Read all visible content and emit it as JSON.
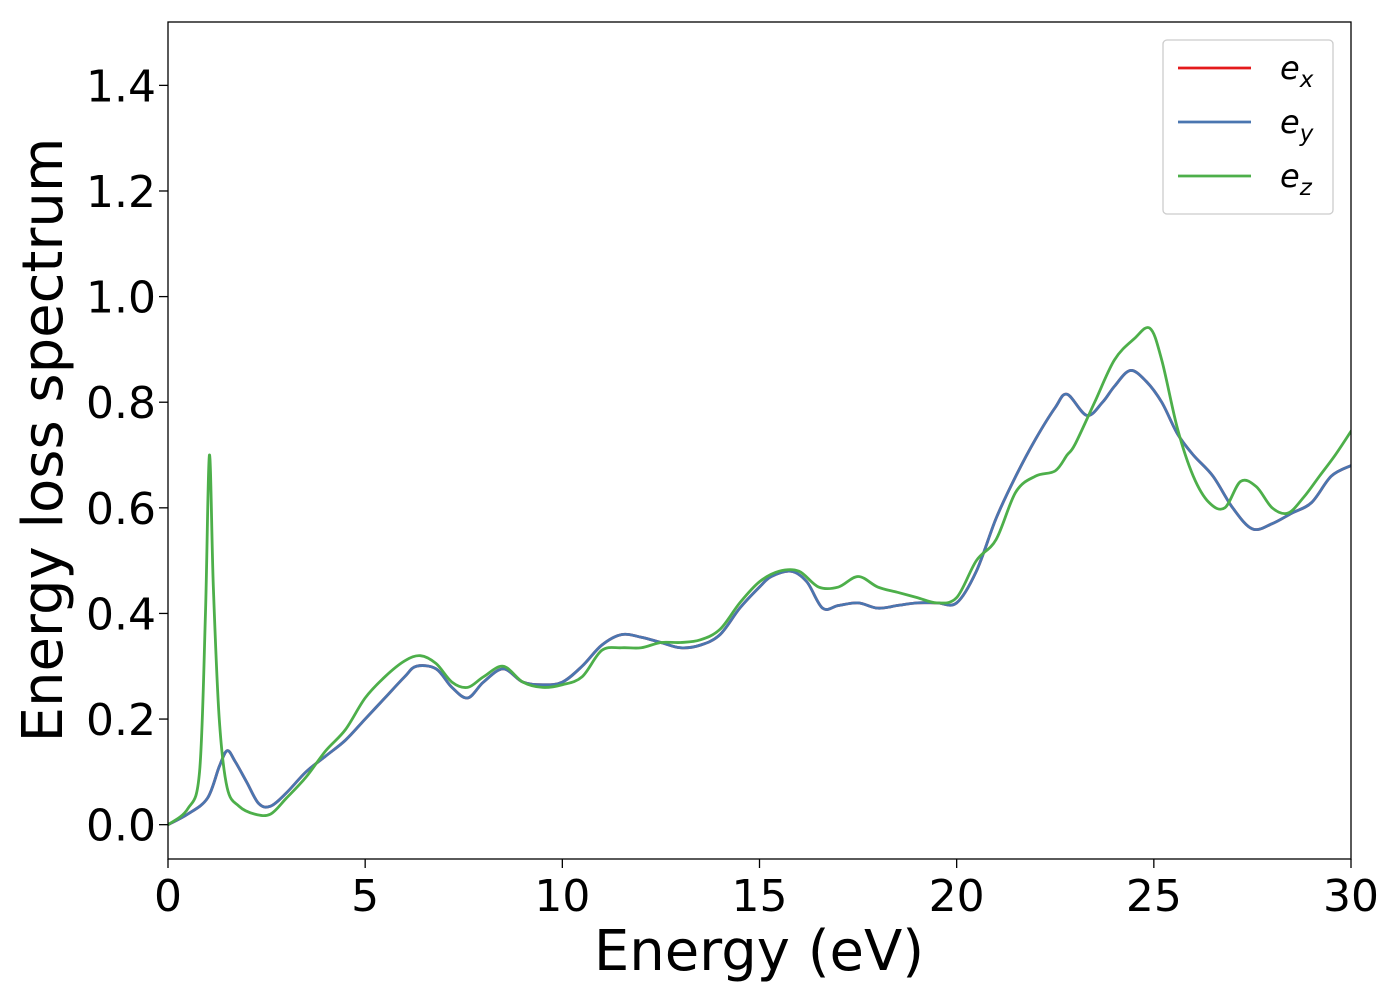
{
  "chart_data": {
    "type": "line",
    "xlabel": "Energy (eV)",
    "ylabel": "Energy loss spectrum",
    "xlim": [
      0,
      30
    ],
    "ylim": [
      -0.065,
      1.52
    ],
    "xticks": [
      0,
      5,
      10,
      15,
      20,
      25,
      30
    ],
    "xtick_labels": [
      "0",
      "5",
      "10",
      "15",
      "20",
      "25",
      "30"
    ],
    "yticks": [
      0.0,
      0.2,
      0.4,
      0.6,
      0.8,
      1.0,
      1.2,
      1.4
    ],
    "ytick_labels": [
      "0.0",
      "0.2",
      "0.4",
      "0.6",
      "0.8",
      "1.0",
      "1.2",
      "1.4"
    ],
    "grid": false,
    "legend_position": "top-right",
    "series": [
      {
        "name": "e_x",
        "legend_base": "e",
        "legend_sub": "x",
        "color": "#e41a1c",
        "x": [
          0,
          0.5,
          1.0,
          1.3,
          1.5,
          1.7,
          2.0,
          2.3,
          2.6,
          3.0,
          3.5,
          4.0,
          4.5,
          5.0,
          5.5,
          6.0,
          6.3,
          6.8,
          7.2,
          7.6,
          8.0,
          8.5,
          9.0,
          9.5,
          10.0,
          10.5,
          11.0,
          11.5,
          12.0,
          12.5,
          13.0,
          13.5,
          14.0,
          14.5,
          15.0,
          15.3,
          15.8,
          16.2,
          16.6,
          17.0,
          17.5,
          18.0,
          18.5,
          19.0,
          19.5,
          20.0,
          20.5,
          21.0,
          21.5,
          22.0,
          22.5,
          22.8,
          23.3,
          23.7,
          24.0,
          24.4,
          24.8,
          25.2,
          25.6,
          26.0,
          26.5,
          27.0,
          27.5,
          28.0,
          28.5,
          29.0,
          29.5,
          30.0
        ],
        "y": [
          0.0,
          0.02,
          0.05,
          0.11,
          0.14,
          0.12,
          0.08,
          0.04,
          0.035,
          0.06,
          0.1,
          0.13,
          0.16,
          0.2,
          0.24,
          0.28,
          0.3,
          0.295,
          0.26,
          0.24,
          0.27,
          0.295,
          0.27,
          0.265,
          0.27,
          0.3,
          0.34,
          0.36,
          0.355,
          0.345,
          0.335,
          0.34,
          0.36,
          0.41,
          0.45,
          0.47,
          0.48,
          0.46,
          0.41,
          0.415,
          0.42,
          0.41,
          0.415,
          0.42,
          0.42,
          0.42,
          0.48,
          0.58,
          0.66,
          0.73,
          0.79,
          0.815,
          0.775,
          0.8,
          0.83,
          0.86,
          0.84,
          0.8,
          0.74,
          0.7,
          0.66,
          0.6,
          0.56,
          0.57,
          0.59,
          0.61,
          0.66,
          0.68
        ]
      },
      {
        "name": "e_y",
        "legend_base": "e",
        "legend_sub": "y",
        "color": "#4a76b0",
        "x": [
          0,
          0.5,
          1.0,
          1.3,
          1.5,
          1.7,
          2.0,
          2.3,
          2.6,
          3.0,
          3.5,
          4.0,
          4.5,
          5.0,
          5.5,
          6.0,
          6.3,
          6.8,
          7.2,
          7.6,
          8.0,
          8.5,
          9.0,
          9.5,
          10.0,
          10.5,
          11.0,
          11.5,
          12.0,
          12.5,
          13.0,
          13.5,
          14.0,
          14.5,
          15.0,
          15.3,
          15.8,
          16.2,
          16.6,
          17.0,
          17.5,
          18.0,
          18.5,
          19.0,
          19.5,
          20.0,
          20.5,
          21.0,
          21.5,
          22.0,
          22.5,
          22.8,
          23.3,
          23.7,
          24.0,
          24.4,
          24.8,
          25.2,
          25.6,
          26.0,
          26.5,
          27.0,
          27.5,
          28.0,
          28.5,
          29.0,
          29.5,
          30.0
        ],
        "y": [
          0.0,
          0.02,
          0.05,
          0.11,
          0.14,
          0.12,
          0.08,
          0.04,
          0.035,
          0.06,
          0.1,
          0.13,
          0.16,
          0.2,
          0.24,
          0.28,
          0.3,
          0.295,
          0.26,
          0.24,
          0.27,
          0.295,
          0.27,
          0.265,
          0.27,
          0.3,
          0.34,
          0.36,
          0.355,
          0.345,
          0.335,
          0.34,
          0.36,
          0.41,
          0.45,
          0.47,
          0.48,
          0.46,
          0.41,
          0.415,
          0.42,
          0.41,
          0.415,
          0.42,
          0.42,
          0.42,
          0.48,
          0.58,
          0.66,
          0.73,
          0.79,
          0.815,
          0.775,
          0.8,
          0.83,
          0.86,
          0.84,
          0.8,
          0.74,
          0.7,
          0.66,
          0.6,
          0.56,
          0.57,
          0.59,
          0.61,
          0.66,
          0.68
        ]
      },
      {
        "name": "e_z",
        "legend_base": "e",
        "legend_sub": "z",
        "color": "#4daf4a",
        "x": [
          0,
          0.5,
          0.8,
          0.95,
          1.05,
          1.15,
          1.3,
          1.5,
          1.8,
          2.2,
          2.6,
          3.0,
          3.5,
          4.0,
          4.5,
          5.0,
          5.5,
          6.0,
          6.4,
          6.8,
          7.2,
          7.6,
          8.0,
          8.5,
          9.0,
          9.5,
          10.0,
          10.5,
          11.0,
          11.5,
          12.0,
          12.5,
          13.0,
          13.5,
          14.0,
          14.5,
          15.0,
          15.5,
          16.0,
          16.5,
          17.0,
          17.5,
          18.0,
          18.5,
          19.0,
          19.5,
          20.0,
          20.5,
          21.0,
          21.5,
          22.0,
          22.5,
          22.8,
          23.0,
          23.5,
          24.0,
          24.5,
          24.9,
          25.2,
          25.6,
          26.0,
          26.4,
          26.8,
          27.2,
          27.6,
          28.0,
          28.4,
          28.8,
          29.2,
          29.6,
          30.0
        ],
        "y": [
          0.0,
          0.03,
          0.1,
          0.4,
          0.7,
          0.45,
          0.2,
          0.07,
          0.035,
          0.02,
          0.02,
          0.05,
          0.09,
          0.14,
          0.18,
          0.24,
          0.28,
          0.31,
          0.32,
          0.305,
          0.27,
          0.26,
          0.28,
          0.3,
          0.27,
          0.26,
          0.265,
          0.28,
          0.33,
          0.335,
          0.335,
          0.345,
          0.345,
          0.35,
          0.37,
          0.42,
          0.46,
          0.48,
          0.48,
          0.45,
          0.45,
          0.47,
          0.45,
          0.44,
          0.43,
          0.42,
          0.43,
          0.5,
          0.54,
          0.63,
          0.66,
          0.67,
          0.7,
          0.72,
          0.8,
          0.88,
          0.92,
          0.94,
          0.88,
          0.75,
          0.66,
          0.61,
          0.6,
          0.65,
          0.64,
          0.6,
          0.59,
          0.62,
          0.66,
          0.7,
          0.745
        ]
      }
    ]
  }
}
